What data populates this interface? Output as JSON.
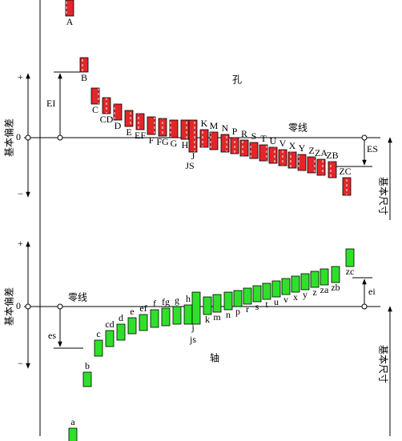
{
  "holes": {
    "title": "孔",
    "zero_line": "零线",
    "axis_label": "基本偏差",
    "size_label": "基本尺寸",
    "plus": "+",
    "zero": "0",
    "minus": "−",
    "lower_dev": "EI",
    "upper_dev": "ES",
    "letters": [
      "A",
      "B",
      "C",
      "CD",
      "D",
      "E",
      "EF",
      "F",
      "FG",
      "G",
      "H",
      "J",
      "JS",
      "K",
      "M",
      "N",
      "P",
      "R",
      "S",
      "T",
      "U",
      "V",
      "X",
      "Y",
      "Z",
      "ZA",
      "ZB",
      "ZC"
    ]
  },
  "shafts": {
    "title": "轴",
    "zero_line": "零线",
    "axis_label": "基本偏差",
    "size_label": "基本尺寸",
    "plus": "+",
    "zero": "0",
    "minus": "−",
    "upper_dev": "es",
    "lower_dev": "ei",
    "letters": [
      "a",
      "b",
      "c",
      "cd",
      "d",
      "e",
      "ef",
      "f",
      "fg",
      "g",
      "h",
      "j",
      "js",
      "k",
      "m",
      "n",
      "p",
      "r",
      "s",
      "t",
      "u",
      "v",
      "x",
      "y",
      "z",
      "za",
      "zb",
      "zc"
    ]
  }
}
